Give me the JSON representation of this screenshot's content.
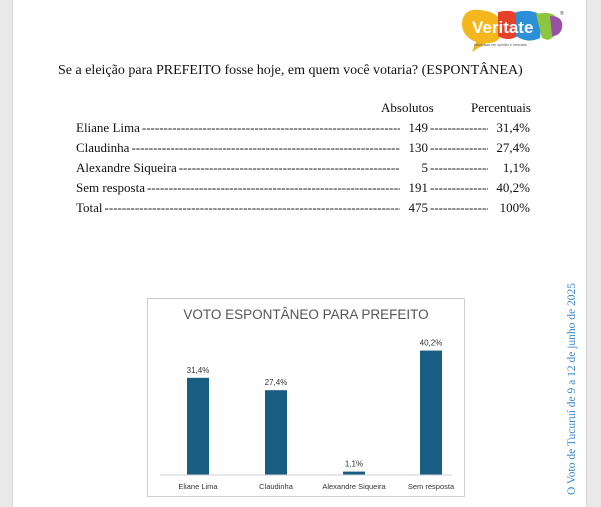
{
  "logo": {
    "brand": "Veritate",
    "tagline": "pesquisas em opinião e mercado"
  },
  "question": "Se a eleição para PREFEITO fosse hoje, em quem você votaria? (ESPONTÂNEA)",
  "table": {
    "headers": {
      "absolutos": "Absolutos",
      "percentuais": "Percentuais"
    },
    "rows": [
      {
        "name": "Eliane Lima",
        "abs": "149",
        "pct": "31,4%"
      },
      {
        "name": "Claudinha",
        "abs": "130",
        "pct": "27,4%"
      },
      {
        "name": "Alexandre Siqueira",
        "abs": "5",
        "pct": "1,1%"
      },
      {
        "name": "Sem resposta",
        "abs": "191",
        "pct": "40,2%"
      },
      {
        "name": "Total",
        "abs": "475",
        "pct": "100%"
      }
    ]
  },
  "chart_data": {
    "type": "bar",
    "title": "VOTO ESPONTÂNEO PARA PREFEITO",
    "categories": [
      "Eliane Lima",
      "Claudinha",
      "Alexandre Siqueira",
      "Sem resposta"
    ],
    "values": [
      31.4,
      27.4,
      1.1,
      40.2
    ],
    "data_labels": [
      "31,4%",
      "27,4%",
      "1,1%",
      "40,2%"
    ],
    "ylim": [
      0,
      42
    ],
    "grid": false,
    "legend": "none",
    "bar_color": "#1a5d82"
  },
  "side_note": "O Voto de Tucuruí de 9 a 12 de junho de 2025"
}
